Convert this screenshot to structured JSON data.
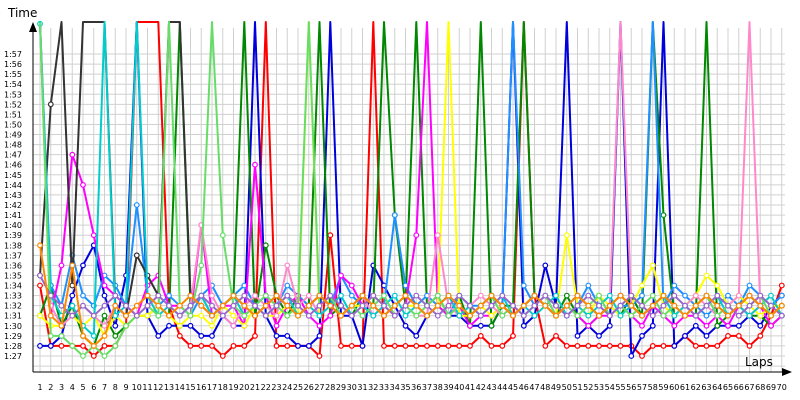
{
  "chart_data": {
    "type": "line",
    "title": "",
    "xlabel": "Laps",
    "ylabel": "Time",
    "grid": true,
    "legend": "none",
    "xlim": [
      1,
      70
    ],
    "ylim": [
      86,
      178
    ],
    "x_ticks": [
      "1",
      "2",
      "3",
      "4",
      "5",
      "6",
      "7",
      "8",
      "9",
      "10",
      "11",
      "12",
      "13",
      "14",
      "15",
      "16",
      "17",
      "18",
      "19",
      "20",
      "21",
      "22",
      "23",
      "24",
      "25",
      "26",
      "27",
      "28",
      "29",
      "30",
      "31",
      "32",
      "33",
      "34",
      "35",
      "36",
      "37",
      "38",
      "39",
      "40",
      "41",
      "42",
      "43",
      "44",
      "45",
      "46",
      "47",
      "48",
      "49",
      "50",
      "51",
      "52",
      "53",
      "54",
      "55",
      "56",
      "57",
      "58",
      "59",
      "60",
      "61",
      "62",
      "63",
      "64",
      "65",
      "66",
      "67",
      "68",
      "69",
      "70"
    ],
    "y_ticks": [
      "1:27",
      "1:28",
      "1:29",
      "1:30",
      "1:31",
      "1:32",
      "1:33",
      "1:34",
      "1:35",
      "1:36",
      "1:37",
      "1:38",
      "1:39",
      "1:40",
      "1:41",
      "1:42",
      "1:43",
      "1:44",
      "1:45",
      "1:46",
      "1:47",
      "1:48",
      "1:49",
      "1:50",
      "1:51",
      "1:52",
      "1:53",
      "1:54",
      "1:55",
      "1:56",
      "1:57"
    ],
    "series": [
      {
        "color": "#ff0000",
        "values": [
          94,
          88,
          88,
          88,
          88,
          87,
          88,
          88,
          90,
          180,
          180,
          149,
          92,
          89,
          88,
          88,
          88,
          87,
          88,
          88,
          89,
          180,
          88,
          88,
          88,
          88,
          87,
          99,
          88,
          88,
          88,
          180,
          88,
          88,
          88,
          88,
          88,
          88,
          88,
          88,
          88,
          89,
          88,
          88,
          89,
          180,
          93,
          88,
          89,
          88,
          88,
          88,
          88,
          88,
          88,
          88,
          87,
          88,
          88,
          88,
          89,
          88,
          88,
          88,
          89,
          89,
          88,
          89,
          91,
          94
        ]
      },
      {
        "color": "#0000dd",
        "values": [
          88,
          88,
          89,
          93,
          96,
          98,
          93,
          90,
          95,
          156,
          91,
          89,
          90,
          90,
          90,
          89,
          89,
          91,
          90,
          90,
          180,
          91,
          89,
          89,
          88,
          88,
          89,
          180,
          91,
          91,
          88,
          96,
          94,
          92,
          90,
          89,
          91,
          92,
          91,
          91,
          90,
          90,
          90,
          92,
          180,
          90,
          91,
          96,
          92,
          180,
          89,
          90,
          89,
          90,
          180,
          87,
          89,
          90,
          180,
          88,
          89,
          90,
          89,
          90,
          90,
          90,
          91,
          90,
          92,
          93
        ]
      },
      {
        "color": "#008800",
        "values": [
          91,
          94,
          90,
          92,
          89,
          88,
          91,
          89,
          90,
          91,
          91,
          92,
          91,
          180,
          92,
          93,
          91,
          92,
          93,
          180,
          91,
          98,
          93,
          91,
          93,
          92,
          180,
          91,
          92,
          91,
          93,
          92,
          180,
          101,
          92,
          180,
          92,
          93,
          91,
          93,
          90,
          180,
          90,
          92,
          92,
          180,
          93,
          92,
          91,
          93,
          91,
          90,
          91,
          92,
          91,
          93,
          91,
          180,
          101,
          91,
          92,
          91,
          180,
          90,
          91,
          92,
          91,
          91,
          90,
          91
        ]
      },
      {
        "color": "#1e90ff",
        "values": [
          148,
          94,
          92,
          97,
          93,
          92,
          95,
          94,
          92,
          102,
          93,
          92,
          93,
          92,
          91,
          93,
          94,
          92,
          93,
          94,
          92,
          93,
          92,
          94,
          93,
          92,
          93,
          92,
          95,
          93,
          92,
          93,
          92,
          101,
          94,
          92,
          93,
          92,
          91,
          93,
          92,
          92,
          93,
          92,
          180,
          94,
          92,
          93,
          92,
          91,
          92,
          94,
          92,
          91,
          92,
          92,
          93,
          180,
          92,
          94,
          93,
          92,
          91,
          92,
          93,
          92,
          94,
          93,
          92,
          93
        ]
      },
      {
        "color": "#ff00ff",
        "values": [
          150,
          91,
          96,
          107,
          104,
          99,
          94,
          93,
          92,
          91,
          94,
          95,
          92,
          92,
          91,
          100,
          91,
          92,
          92,
          90,
          106,
          93,
          90,
          92,
          93,
          91,
          90,
          91,
          95,
          94,
          92,
          91,
          92,
          91,
          92,
          99,
          150,
          92,
          91,
          92,
          90,
          91,
          91,
          92,
          91,
          92,
          93,
          92,
          91,
          92,
          91,
          90,
          91,
          91,
          92,
          91,
          90,
          92,
          91,
          90,
          91,
          91,
          90,
          91,
          90,
          92,
          91,
          92,
          90,
          91
        ]
      },
      {
        "color": "#ffff00",
        "values": [
          91,
          90,
          90,
          91,
          90,
          91,
          89,
          91,
          90,
          91,
          91,
          92,
          91,
          90,
          91,
          91,
          90,
          92,
          91,
          90,
          92,
          91,
          91,
          92,
          91,
          180,
          91,
          92,
          91,
          92,
          92,
          93,
          92,
          91,
          92,
          92,
          91,
          92,
          180,
          91,
          91,
          92,
          91,
          92,
          91,
          92,
          93,
          92,
          91,
          99,
          92,
          91,
          93,
          92,
          91,
          92,
          94,
          96,
          92,
          91,
          92,
          93,
          95,
          94,
          92,
          93,
          92,
          91,
          92,
          92
        ]
      },
      {
        "color": "#ff88cc",
        "values": [
          145,
          92,
          90,
          91,
          92,
          91,
          90,
          92,
          91,
          92,
          93,
          91,
          92,
          91,
          92,
          100,
          93,
          91,
          90,
          92,
          93,
          92,
          91,
          96,
          92,
          93,
          91,
          92,
          91,
          92,
          93,
          91,
          92,
          91,
          92,
          91,
          91,
          99,
          92,
          91,
          92,
          93,
          92,
          91,
          92,
          91,
          92,
          93,
          91,
          92,
          91,
          92,
          91,
          92,
          143,
          92,
          91,
          92,
          93,
          91,
          92,
          93,
          92,
          91,
          92,
          93,
          180,
          92,
          91,
          92
        ]
      },
      {
        "color": "#333333",
        "values": [
          95,
          112,
          140,
          94,
          154,
          180,
          153,
          92,
          91,
          97,
          95,
          93,
          145,
          141,
          93,
          92,
          91,
          92,
          93,
          92,
          91,
          92,
          93,
          92,
          91,
          92,
          93,
          92,
          91,
          92,
          93,
          92,
          91,
          92,
          93,
          92,
          91,
          92,
          93,
          92,
          91,
          92,
          93,
          92,
          91,
          92,
          93,
          92,
          91,
          92,
          93,
          92,
          91,
          92,
          93,
          92,
          91,
          92,
          93,
          92,
          91,
          92,
          93,
          92,
          91,
          92,
          93,
          92,
          91,
          92
        ]
      },
      {
        "color": "#00cccc",
        "values": [
          120,
          93,
          91,
          92,
          90,
          89,
          142,
          91,
          92,
          180,
          93,
          91,
          92,
          91,
          92,
          93,
          91,
          92,
          93,
          91,
          92,
          91,
          92,
          93,
          91,
          92,
          91,
          92,
          93,
          91,
          92,
          91,
          92,
          93,
          91,
          92,
          91,
          92,
          93,
          91,
          92,
          91,
          92,
          93,
          91,
          92,
          91,
          92,
          93,
          91,
          92,
          91,
          92,
          93,
          91,
          92,
          91,
          92,
          93,
          91,
          92,
          91,
          92,
          93,
          91,
          92,
          91,
          92,
          93,
          91
        ]
      },
      {
        "color": "#66dd66",
        "values": [
          155,
          89,
          89,
          88,
          87,
          88,
          87,
          88,
          90,
          91,
          92,
          91,
          180,
          92,
          91,
          96,
          180,
          99,
          92,
          91,
          92,
          93,
          92,
          91,
          92,
          180,
          92,
          93,
          91,
          92,
          91,
          92,
          93,
          91,
          92,
          91,
          92,
          93,
          91,
          92,
          91,
          92,
          93,
          91,
          92,
          91,
          92,
          93,
          91,
          92,
          91,
          92,
          93,
          91,
          92,
          91,
          92,
          93,
          91,
          92,
          91,
          92,
          93,
          91,
          92,
          91,
          92,
          93,
          91,
          92
        ]
      },
      {
        "color": "#9966cc",
        "values": [
          95,
          93,
          92,
          91,
          92,
          91,
          92,
          93,
          92,
          91,
          92,
          93,
          92,
          91,
          92,
          93,
          92,
          91,
          92,
          93,
          92,
          91,
          92,
          93,
          92,
          91,
          92,
          93,
          92,
          91,
          92,
          93,
          92,
          91,
          92,
          93,
          92,
          91,
          92,
          93,
          92,
          91,
          92,
          93,
          92,
          91,
          92,
          93,
          92,
          91,
          92,
          93,
          92,
          91,
          92,
          93,
          92,
          91,
          92,
          93,
          92,
          91,
          92,
          93,
          92,
          91,
          92,
          93,
          92,
          91
        ]
      },
      {
        "color": "#ff8800",
        "values": [
          98,
          91,
          90,
          96,
          89,
          88,
          89,
          92,
          91,
          92,
          93,
          92,
          91,
          92,
          93,
          92,
          91,
          92,
          93,
          92,
          91,
          92,
          93,
          92,
          91,
          92,
          93,
          92,
          91,
          92,
          93,
          92,
          91,
          92,
          93,
          92,
          91,
          92,
          93,
          92,
          91,
          92,
          93,
          92,
          91,
          92,
          93,
          92,
          91,
          92,
          93,
          92,
          91,
          92,
          93,
          92,
          91,
          92,
          93,
          92,
          91,
          92,
          93,
          92,
          91,
          92,
          93,
          92,
          91,
          92
        ]
      }
    ]
  }
}
